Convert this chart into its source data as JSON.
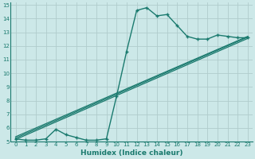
{
  "title": "",
  "xlabel": "Humidex (Indice chaleur)",
  "xlim": [
    -0.5,
    23.5
  ],
  "ylim": [
    5,
    15.2
  ],
  "yticks": [
    5,
    6,
    7,
    8,
    9,
    10,
    11,
    12,
    13,
    14,
    15
  ],
  "xticks": [
    0,
    1,
    2,
    3,
    4,
    5,
    6,
    7,
    8,
    9,
    10,
    11,
    12,
    13,
    14,
    15,
    16,
    17,
    18,
    19,
    20,
    21,
    22,
    23
  ],
  "bg_color": "#cce8e8",
  "plot_bg": "#cce8e8",
  "line_color": "#1a7a6e",
  "grid_color": "#b0cccc",
  "line1_x": [
    0,
    1,
    2,
    3,
    4,
    5,
    6,
    7,
    8,
    9,
    10,
    11,
    12,
    13,
    14,
    15,
    16,
    17,
    18,
    19,
    20,
    21,
    22,
    23
  ],
  "line1_y": [
    5.2,
    5.1,
    5.1,
    5.2,
    5.9,
    5.5,
    5.3,
    5.1,
    5.1,
    5.2,
    8.3,
    11.6,
    14.6,
    14.8,
    14.2,
    14.3,
    13.5,
    12.7,
    12.5,
    12.5,
    12.8,
    12.7,
    12.6,
    12.6
  ],
  "straight_lines": [
    {
      "x0": 0,
      "y0": 5.15,
      "x1": 23,
      "y1": 12.55
    },
    {
      "x0": 0,
      "y0": 5.25,
      "x1": 23,
      "y1": 12.65
    },
    {
      "x0": 0,
      "y0": 5.35,
      "x1": 23,
      "y1": 12.7
    }
  ]
}
